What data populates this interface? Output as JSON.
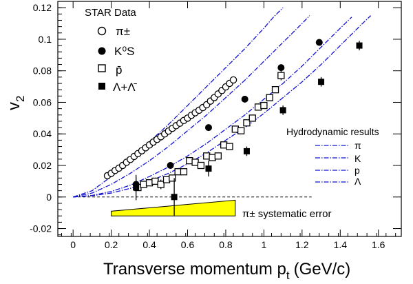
{
  "chart_data": {
    "type": "scatter",
    "xlabel": "Transverse momentum p",
    "xlabel_sub": "t",
    "xlabel_units": "(GeV/c)",
    "ylabel": "v",
    "ylabel_sub": "2",
    "xlim": [
      -0.08,
      1.72
    ],
    "ylim": [
      -0.025,
      0.124
    ],
    "x_ticks": [
      0,
      0.2,
      0.4,
      0.6,
      0.8,
      1,
      1.2,
      1.4,
      1.6
    ],
    "x_tick_labels": [
      "0",
      "0.2",
      "0.4",
      "0.6",
      "0.8",
      "1",
      "1.2",
      "1.4",
      "1.6"
    ],
    "y_ticks": [
      -0.02,
      0,
      0.02,
      0.04,
      0.06,
      0.08,
      0.1,
      0.12
    ],
    "y_tick_labels": [
      "-0.02",
      "0",
      "0.02",
      "0.04",
      "0.06",
      "0.08",
      "0.1",
      "0.12"
    ],
    "grid": false,
    "data_legend": {
      "title": "STAR Data",
      "position": "top-left",
      "entries": [
        "π±",
        "K⁰S",
        "p̄",
        "Λ+Λ̄"
      ]
    },
    "model_legend": {
      "title": "Hydrodynamic results",
      "position": "right",
      "entries": [
        "π",
        "K",
        "p",
        "Λ"
      ]
    },
    "systematic_label": "π± systematic error",
    "systematic_band": {
      "x": [
        0.2,
        0.85
      ],
      "y_low": -0.012,
      "y_high_start": -0.009,
      "y_high_end": -0.002
    },
    "zero_line": true,
    "colors": {
      "model_line": "#1010d0",
      "band": "#ffff00",
      "axis": "#000000"
    },
    "series": [
      {
        "name": "π±",
        "marker": "open-circle",
        "x": [
          0.18,
          0.2,
          0.22,
          0.24,
          0.26,
          0.28,
          0.3,
          0.32,
          0.34,
          0.36,
          0.38,
          0.4,
          0.42,
          0.44,
          0.46,
          0.48,
          0.5,
          0.52,
          0.54,
          0.56,
          0.58,
          0.6,
          0.62,
          0.64,
          0.66,
          0.68,
          0.7,
          0.72,
          0.74,
          0.76,
          0.78,
          0.8,
          0.82,
          0.84
        ],
        "y": [
          0.0135,
          0.015,
          0.0168,
          0.0183,
          0.02,
          0.022,
          0.0238,
          0.0257,
          0.0275,
          0.0293,
          0.0312,
          0.033,
          0.0348,
          0.0365,
          0.0382,
          0.04,
          0.0418,
          0.0435,
          0.0452,
          0.0468,
          0.0485,
          0.05,
          0.0518,
          0.0534,
          0.055,
          0.0567,
          0.0585,
          0.0608,
          0.063,
          0.0653,
          0.0675,
          0.0698,
          0.072,
          0.0742
        ]
      },
      {
        "name": "K⁰S",
        "marker": "filled-circle",
        "x": [
          0.33,
          0.51,
          0.71,
          0.9,
          1.09,
          1.29
        ],
        "y": [
          0.008,
          0.02,
          0.044,
          0.062,
          0.082,
          0.098
        ],
        "yerr": [
          0.004,
          0.002,
          0.002,
          0.002,
          0.002,
          0.002
        ]
      },
      {
        "name": "p̄",
        "marker": "open-square",
        "x": [
          0.34,
          0.37,
          0.4,
          0.43,
          0.46,
          0.49,
          0.52,
          0.55,
          0.58,
          0.61,
          0.64,
          0.67,
          0.7,
          0.73,
          0.76,
          0.79,
          0.82,
          0.85,
          0.88,
          0.91,
          0.94,
          0.97,
          1.0,
          1.03,
          1.06,
          1.09
        ],
        "y": [
          0.006,
          0.008,
          0.009,
          0.01,
          0.008,
          0.011,
          0.012,
          0.016,
          0.016,
          0.023,
          0.022,
          0.02,
          0.026,
          0.025,
          0.026,
          0.033,
          0.032,
          0.043,
          0.042,
          0.047,
          0.05,
          0.057,
          0.058,
          0.063,
          0.068,
          0.077
        ],
        "yerr": [
          0.002,
          0.002,
          0.002,
          0.002,
          0.003,
          0.002,
          0.002,
          0.002,
          0.002,
          0.002,
          0.002,
          0.002,
          0.002,
          0.002,
          0.002,
          0.002,
          0.002,
          0.002,
          0.002,
          0.002,
          0.002,
          0.002,
          0.002,
          0.002,
          0.002,
          0.003
        ]
      },
      {
        "name": "Λ+Λ̄",
        "marker": "filled-square",
        "x": [
          0.33,
          0.53,
          0.71,
          0.91,
          1.1,
          1.3,
          1.5
        ],
        "y": [
          0.006,
          0.0,
          0.018,
          0.029,
          0.055,
          0.073,
          0.096
        ],
        "yerr": [
          0.008,
          0.012,
          0.005,
          0.003,
          0.003,
          0.003,
          0.003
        ]
      }
    ],
    "model_curves": [
      {
        "name": "π",
        "x": [
          0,
          0.1,
          0.2,
          0.3,
          0.4,
          0.5,
          0.6,
          0.7,
          0.8,
          0.9,
          1.0,
          1.05,
          1.1
        ],
        "y": [
          0,
          0.004,
          0.013,
          0.024,
          0.035,
          0.046,
          0.058,
          0.07,
          0.082,
          0.094,
          0.107,
          0.114,
          0.12
        ]
      },
      {
        "name": "K",
        "x": [
          0,
          0.1,
          0.2,
          0.3,
          0.4,
          0.5,
          0.6,
          0.7,
          0.8,
          0.9,
          1.0,
          1.1,
          1.2,
          1.24
        ],
        "y": [
          0,
          0.0025,
          0.008,
          0.015,
          0.023,
          0.032,
          0.042,
          0.052,
          0.063,
          0.074,
          0.086,
          0.098,
          0.11,
          0.115
        ]
      },
      {
        "name": "p",
        "x": [
          0,
          0.1,
          0.2,
          0.3,
          0.4,
          0.5,
          0.6,
          0.7,
          0.8,
          0.9,
          1.0,
          1.1,
          1.2,
          1.3,
          1.4,
          1.46
        ],
        "y": [
          0,
          0.001,
          0.0035,
          0.0075,
          0.013,
          0.019,
          0.026,
          0.034,
          0.043,
          0.052,
          0.062,
          0.072,
          0.083,
          0.095,
          0.107,
          0.114
        ]
      },
      {
        "name": "Λ",
        "x": [
          0,
          0.1,
          0.2,
          0.3,
          0.4,
          0.5,
          0.6,
          0.7,
          0.8,
          0.9,
          1.0,
          1.1,
          1.2,
          1.3,
          1.4,
          1.5,
          1.56
        ],
        "y": [
          0,
          0.0008,
          0.0025,
          0.0055,
          0.01,
          0.015,
          0.021,
          0.028,
          0.036,
          0.044,
          0.053,
          0.063,
          0.073,
          0.084,
          0.096,
          0.108,
          0.115
        ]
      }
    ]
  }
}
